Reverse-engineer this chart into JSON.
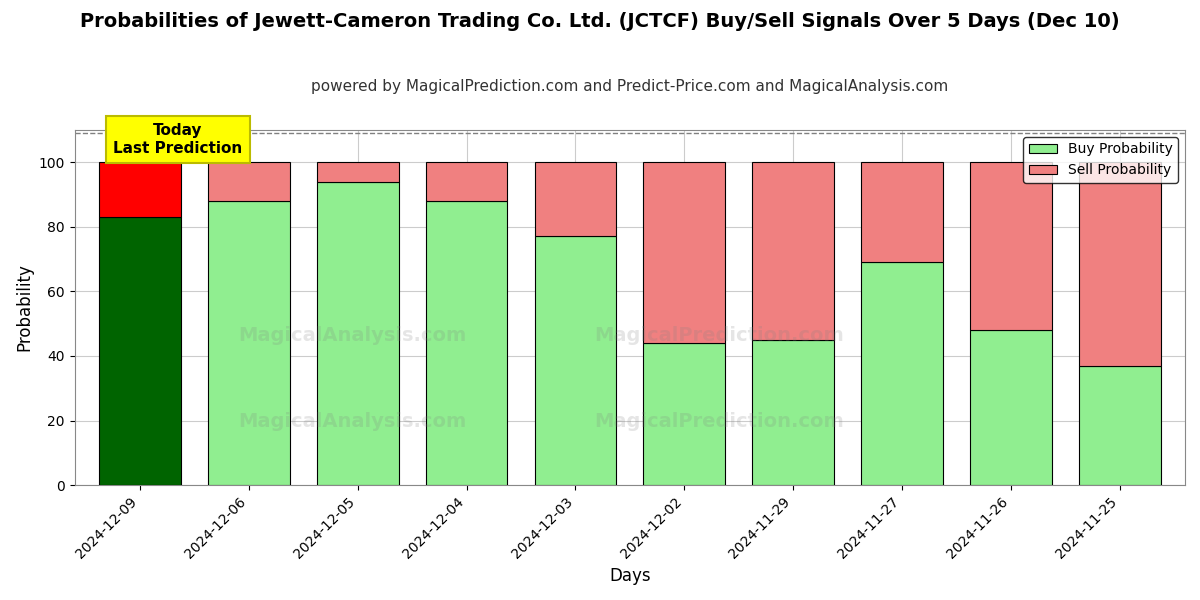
{
  "title": "Probabilities of Jewett-Cameron Trading Co. Ltd. (JCTCF) Buy/Sell Signals Over 5 Days (Dec 10)",
  "subtitle": "powered by MagicalPrediction.com and Predict-Price.com and MagicalAnalysis.com",
  "xlabel": "Days",
  "ylabel": "Probability",
  "categories": [
    "2024-12-09",
    "2024-12-06",
    "2024-12-05",
    "2024-12-04",
    "2024-12-03",
    "2024-12-02",
    "2024-11-29",
    "2024-11-27",
    "2024-11-26",
    "2024-11-25"
  ],
  "buy_values": [
    83,
    88,
    94,
    88,
    77,
    44,
    45,
    69,
    48,
    37
  ],
  "sell_values": [
    17,
    12,
    6,
    12,
    23,
    56,
    55,
    31,
    52,
    63
  ],
  "today_buy_color": "#006400",
  "today_sell_color": "#FF0000",
  "buy_color": "#90EE90",
  "sell_color": "#F08080",
  "bar_edge_color": "#000000",
  "today_annotation_text": "Today\nLast Prediction",
  "today_annotation_bg": "#FFFF00",
  "legend_buy_label": "Buy Probability",
  "legend_sell_label": "Sell Probability",
  "ylim": [
    0,
    110
  ],
  "title_fontsize": 14,
  "subtitle_fontsize": 11,
  "axis_label_fontsize": 12,
  "tick_fontsize": 10,
  "background_color": "#ffffff",
  "grid_color": "#cccccc"
}
